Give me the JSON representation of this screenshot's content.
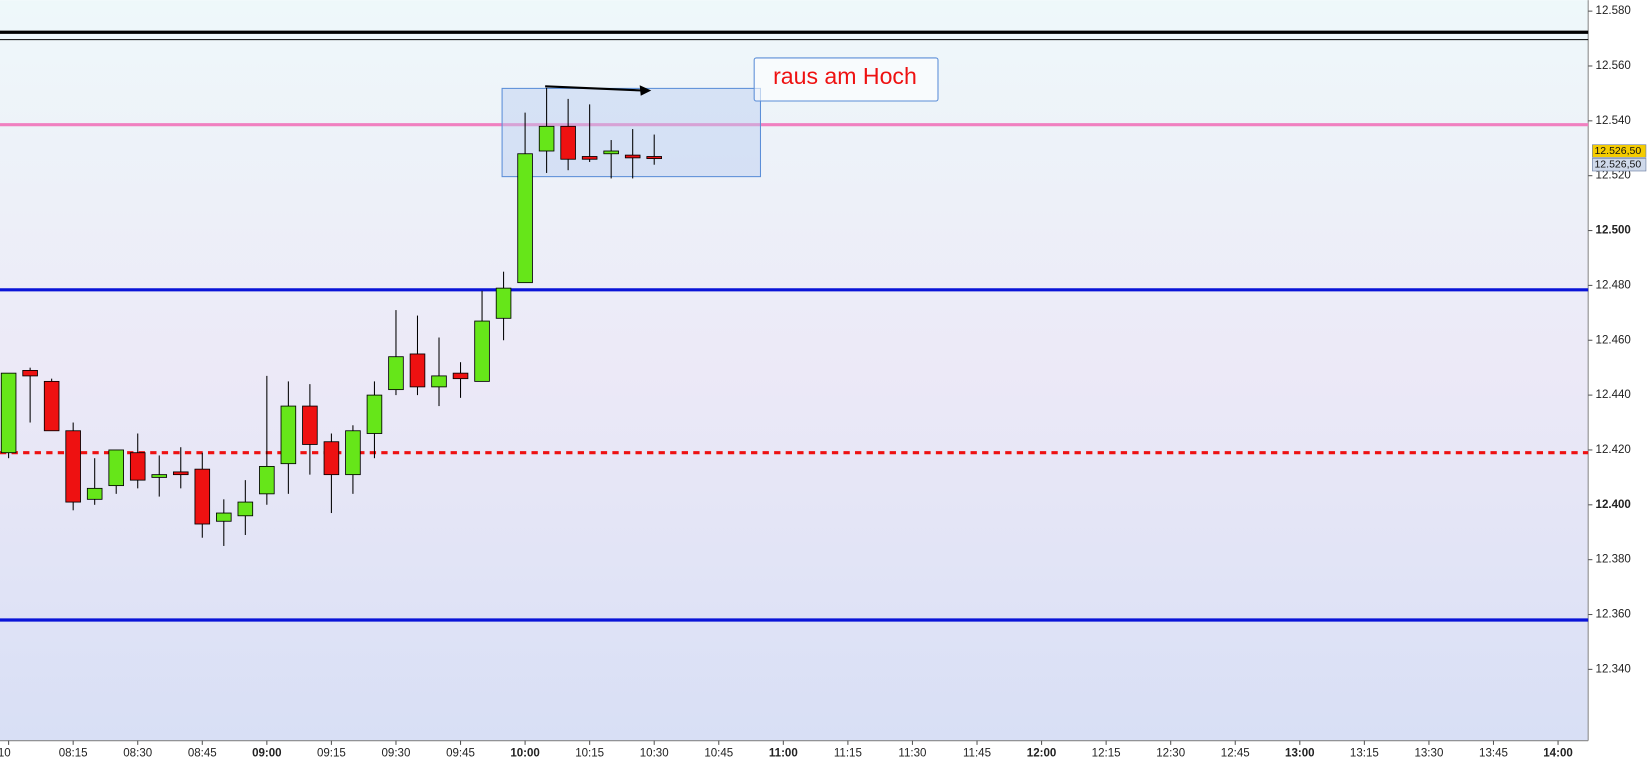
{
  "chart_data": {
    "type": "candlestick",
    "x": [
      "08:00",
      "08:05",
      "08:10",
      "08:15",
      "08:20",
      "08:25",
      "08:30",
      "08:35",
      "08:40",
      "08:45",
      "08:50",
      "08:55",
      "09:00",
      "09:05",
      "09:10",
      "09:15",
      "09:20",
      "09:25",
      "09:30",
      "09:35",
      "09:40",
      "09:45",
      "09:50",
      "09:55",
      "10:00",
      "10:05",
      "10:10",
      "10:15",
      "10:20",
      "10:25",
      "10:30"
    ],
    "open": [
      12.419,
      12.449,
      12.445,
      12.427,
      12.402,
      12.407,
      12.419,
      12.41,
      12.412,
      12.413,
      12.394,
      12.396,
      12.404,
      12.415,
      12.436,
      12.423,
      12.411,
      12.426,
      12.442,
      12.455,
      12.443,
      12.448,
      12.445,
      12.468,
      12.481,
      12.529,
      12.538,
      12.527,
      12.528,
      12.5275,
      12.527
    ],
    "high": [
      12.448,
      12.45,
      12.446,
      12.43,
      12.417,
      12.42,
      12.426,
      12.418,
      12.421,
      12.419,
      12.402,
      12.409,
      12.447,
      12.445,
      12.444,
      12.426,
      12.429,
      12.445,
      12.471,
      12.469,
      12.461,
      12.452,
      12.478,
      12.485,
      12.543,
      12.552,
      12.548,
      12.546,
      12.533,
      12.537,
      12.535
    ],
    "low": [
      12.417,
      12.43,
      12.427,
      12.398,
      12.4,
      12.404,
      12.406,
      12.403,
      12.406,
      12.388,
      12.385,
      12.389,
      12.4,
      12.404,
      12.411,
      12.397,
      12.404,
      12.417,
      12.44,
      12.44,
      12.436,
      12.439,
      12.445,
      12.46,
      12.481,
      12.521,
      12.522,
      12.525,
      12.519,
      12.519,
      12.524
    ],
    "close": [
      12.448,
      12.447,
      12.427,
      12.401,
      12.406,
      12.42,
      12.409,
      12.411,
      12.411,
      12.393,
      12.397,
      12.401,
      12.414,
      12.436,
      12.422,
      12.411,
      12.427,
      12.44,
      12.454,
      12.443,
      12.447,
      12.446,
      12.467,
      12.479,
      12.528,
      12.538,
      12.526,
      12.526,
      12.529,
      12.5265,
      12.5265
    ],
    "up_color": "#66e619",
    "down_color": "#ee1111",
    "xlim": [
      "07:58",
      "14:07"
    ],
    "xticks": [
      {
        "value": "08:00",
        "label": "10"
      },
      "08:15",
      "08:30",
      "08:45",
      "09:00",
      "09:15",
      "09:30",
      "09:45",
      "10:00",
      "10:15",
      "10:30",
      "10:45",
      "11:00",
      "11:15",
      "11:30",
      "11:45",
      "12:00",
      "12:15",
      "12:30",
      "12:45",
      "13:00",
      "13:15",
      "13:30",
      "13:45",
      "14:00"
    ],
    "ylim": [
      12.314,
      12.584
    ],
    "yticks": [
      {
        "value": 12.58,
        "label": "12.580"
      },
      {
        "value": 12.56,
        "label": "12.560"
      },
      {
        "value": 12.54,
        "label": "12.540"
      },
      {
        "value": 12.52,
        "label": "12.520"
      },
      {
        "value": 12.5,
        "label": "12.500"
      },
      {
        "value": 12.48,
        "label": "12.480"
      },
      {
        "value": 12.46,
        "label": "12.460"
      },
      {
        "value": 12.44,
        "label": "12.440"
      },
      {
        "value": 12.42,
        "label": "12.420"
      },
      {
        "value": 12.4,
        "label": "12.400"
      },
      {
        "value": 12.38,
        "label": "12.380"
      },
      {
        "value": 12.36,
        "label": "12.360"
      },
      {
        "value": 12.34,
        "label": "12.340"
      }
    ],
    "lines": [
      {
        "value": 12.5723,
        "color": "#000000",
        "width": 3,
        "style": "solid"
      },
      {
        "value": 12.5696,
        "color": "#000000",
        "width": 1,
        "style": "solid"
      },
      {
        "value": 12.5386,
        "color": "#f080c0",
        "width": 3,
        "style": "solid"
      },
      {
        "value": 12.4784,
        "color": "#0a14d8",
        "width": 3,
        "style": "solid"
      },
      {
        "value": 12.419,
        "color": "#ee1111",
        "width": 3,
        "style": "dashed"
      },
      {
        "value": 12.358,
        "color": "#0a14d8",
        "width": 3,
        "style": "solid"
      }
    ],
    "price_labels": [
      {
        "value": 12.5265,
        "label": "12.526,50",
        "color": "#f5cc00"
      },
      {
        "value": 12.5265,
        "label": "12.526,50",
        "color": "#cfd9ea"
      }
    ],
    "annotation": "raus am Hoch"
  }
}
